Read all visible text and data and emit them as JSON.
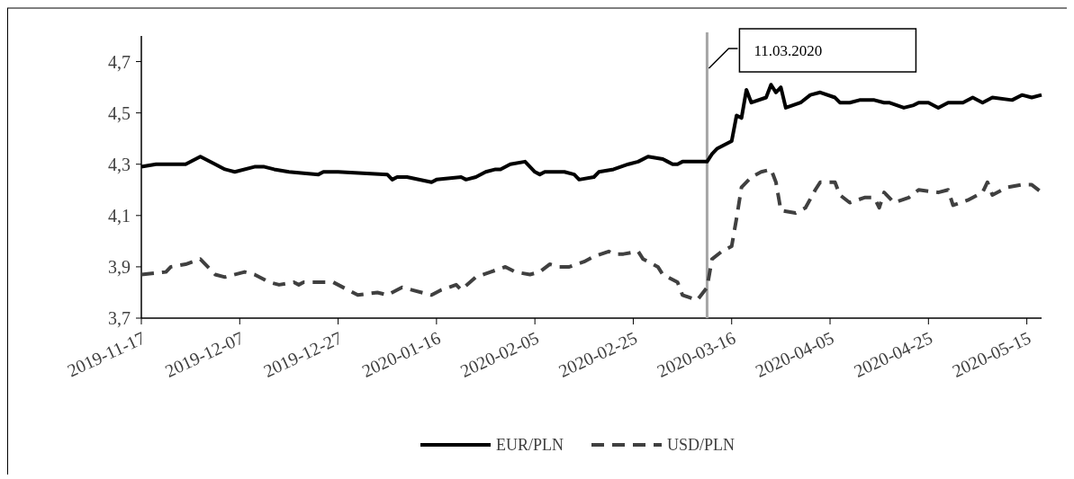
{
  "chart_data": {
    "type": "line",
    "xlim": [
      "2019-11-17",
      "2020-05-18"
    ],
    "xticks": [
      "2019-11-17",
      "2019-12-07",
      "2019-12-27",
      "2020-01-16",
      "2020-02-05",
      "2020-02-25",
      "2020-03-16",
      "2020-04-05",
      "2020-04-25",
      "2020-05-15"
    ],
    "ylim": [
      3.7,
      4.8
    ],
    "yticks": [
      {
        "value": 3.7,
        "label": "3,7"
      },
      {
        "value": 3.9,
        "label": "3,9"
      },
      {
        "value": 4.1,
        "label": "4,1"
      },
      {
        "value": 4.3,
        "label": "4,3"
      },
      {
        "value": 4.5,
        "label": "4,5"
      },
      {
        "value": 4.7,
        "label": "4,7"
      }
    ],
    "grid": false,
    "legend": "bottom",
    "marker": "none",
    "ref_lines": [
      {
        "axis": "x",
        "value": "2020-03-11",
        "label": "11.03.2020",
        "color": "#a6a6a6"
      }
    ],
    "series": [
      {
        "name": "EUR/PLN",
        "color": "#000000",
        "line_style": "solid",
        "x": [
          "2019-11-17",
          "2019-11-20",
          "2019-11-22",
          "2019-11-26",
          "2019-11-29",
          "2019-12-02",
          "2019-12-04",
          "2019-12-06",
          "2019-12-10",
          "2019-12-12",
          "2019-12-14",
          "2019-12-17",
          "2019-12-23",
          "2019-12-24",
          "2019-12-27",
          "2020-01-06",
          "2020-01-07",
          "2020-01-08",
          "2020-01-10",
          "2020-01-15",
          "2020-01-16",
          "2020-01-21",
          "2020-01-22",
          "2020-01-24",
          "2020-01-26",
          "2020-01-28",
          "2020-01-29",
          "2020-01-31",
          "2020-02-03",
          "2020-02-05",
          "2020-02-06",
          "2020-02-07",
          "2020-02-10",
          "2020-02-11",
          "2020-02-13",
          "2020-02-14",
          "2020-02-17",
          "2020-02-18",
          "2020-02-21",
          "2020-02-24",
          "2020-02-26",
          "2020-02-28",
          "2020-03-02",
          "2020-03-03",
          "2020-03-04",
          "2020-03-05",
          "2020-03-06",
          "2020-03-09",
          "2020-03-11",
          "2020-03-12",
          "2020-03-13",
          "2020-03-16",
          "2020-03-17",
          "2020-03-18",
          "2020-03-19",
          "2020-03-20",
          "2020-03-23",
          "2020-03-24",
          "2020-03-25",
          "2020-03-26",
          "2020-03-27",
          "2020-03-30",
          "2020-04-01",
          "2020-04-03",
          "2020-04-06",
          "2020-04-07",
          "2020-04-09",
          "2020-04-11",
          "2020-04-14",
          "2020-04-16",
          "2020-04-17",
          "2020-04-20",
          "2020-04-22",
          "2020-04-23",
          "2020-04-25",
          "2020-04-27",
          "2020-04-29",
          "2020-05-02",
          "2020-05-04",
          "2020-05-06",
          "2020-05-08",
          "2020-05-12",
          "2020-05-14",
          "2020-05-16",
          "2020-05-18"
        ],
        "values": [
          4.29,
          4.3,
          4.3,
          4.3,
          4.33,
          4.3,
          4.28,
          4.27,
          4.29,
          4.29,
          4.28,
          4.27,
          4.26,
          4.27,
          4.27,
          4.26,
          4.24,
          4.25,
          4.25,
          4.23,
          4.24,
          4.25,
          4.24,
          4.25,
          4.27,
          4.28,
          4.28,
          4.3,
          4.31,
          4.27,
          4.26,
          4.27,
          4.27,
          4.27,
          4.26,
          4.24,
          4.25,
          4.27,
          4.28,
          4.3,
          4.31,
          4.33,
          4.32,
          4.31,
          4.3,
          4.3,
          4.31,
          4.31,
          4.31,
          4.34,
          4.36,
          4.39,
          4.49,
          4.48,
          4.59,
          4.54,
          4.56,
          4.61,
          4.58,
          4.6,
          4.52,
          4.54,
          4.57,
          4.58,
          4.56,
          4.54,
          4.54,
          4.55,
          4.55,
          4.54,
          4.54,
          4.52,
          4.53,
          4.54,
          4.54,
          4.52,
          4.54,
          4.54,
          4.56,
          4.54,
          4.56,
          4.55,
          4.57,
          4.56,
          4.57
        ]
      },
      {
        "name": "USD/PLN",
        "color": "#404040",
        "line_style": "dashed",
        "x": [
          "2019-11-17",
          "2019-11-22",
          "2019-11-23",
          "2019-11-26",
          "2019-11-29",
          "2019-12-02",
          "2019-12-04",
          "2019-12-08",
          "2019-12-10",
          "2019-12-13",
          "2019-12-15",
          "2019-12-18",
          "2019-12-19",
          "2019-12-20",
          "2019-12-24",
          "2019-12-26",
          "2019-12-29",
          "2019-12-31",
          "2020-01-04",
          "2020-01-06",
          "2020-01-09",
          "2020-01-11",
          "2020-01-15",
          "2020-01-17",
          "2020-01-20",
          "2020-01-21",
          "2020-01-24",
          "2020-01-27",
          "2020-01-30",
          "2020-02-01",
          "2020-02-04",
          "2020-02-06",
          "2020-02-08",
          "2020-02-10",
          "2020-02-12",
          "2020-02-15",
          "2020-02-17",
          "2020-02-20",
          "2020-02-21",
          "2020-02-23",
          "2020-02-26",
          "2020-02-27",
          "2020-03-01",
          "2020-03-02",
          "2020-03-05",
          "2020-03-06",
          "2020-03-09",
          "2020-03-11",
          "2020-03-12",
          "2020-03-14",
          "2020-03-16",
          "2020-03-17",
          "2020-03-18",
          "2020-03-20",
          "2020-03-22",
          "2020-03-24",
          "2020-03-25",
          "2020-03-26",
          "2020-03-29",
          "2020-03-31",
          "2020-04-02",
          "2020-04-03",
          "2020-04-06",
          "2020-04-07",
          "2020-04-09",
          "2020-04-12",
          "2020-04-14",
          "2020-04-15",
          "2020-04-16",
          "2020-04-18",
          "2020-04-21",
          "2020-04-23",
          "2020-04-27",
          "2020-04-29",
          "2020-04-30",
          "2020-05-03",
          "2020-05-06",
          "2020-05-07",
          "2020-05-08",
          "2020-05-11",
          "2020-05-14",
          "2020-05-16",
          "2020-05-18"
        ],
        "values": [
          3.87,
          3.88,
          3.9,
          3.91,
          3.93,
          3.87,
          3.86,
          3.88,
          3.87,
          3.84,
          3.83,
          3.84,
          3.83,
          3.84,
          3.84,
          3.84,
          3.81,
          3.79,
          3.8,
          3.79,
          3.82,
          3.81,
          3.79,
          3.81,
          3.83,
          3.81,
          3.86,
          3.88,
          3.9,
          3.88,
          3.87,
          3.88,
          3.91,
          3.9,
          3.9,
          3.92,
          3.94,
          3.96,
          3.95,
          3.95,
          3.96,
          3.93,
          3.9,
          3.87,
          3.84,
          3.79,
          3.77,
          3.82,
          3.93,
          3.96,
          3.98,
          4.09,
          4.21,
          4.25,
          4.27,
          4.28,
          4.23,
          4.12,
          4.11,
          4.13,
          4.2,
          4.23,
          4.23,
          4.18,
          4.15,
          4.17,
          4.17,
          4.13,
          4.19,
          4.15,
          4.17,
          4.2,
          4.19,
          4.2,
          4.14,
          4.16,
          4.19,
          4.23,
          4.18,
          4.21,
          4.22,
          4.22,
          4.19
        ]
      }
    ]
  }
}
